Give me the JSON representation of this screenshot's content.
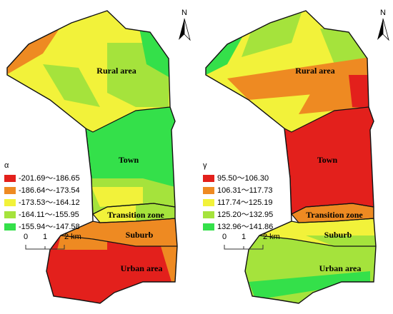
{
  "maps": [
    {
      "legend_title": "α",
      "legend": [
        {
          "label": "-201.69～-186.65",
          "color": "#e3201c"
        },
        {
          "label": "-186.64～-173.54",
          "color": "#ee8a22"
        },
        {
          "label": "-173.53～-164.12",
          "color": "#f2f23a"
        },
        {
          "label": "-164.11～-155.95",
          "color": "#a5e33c"
        },
        {
          "label": "-155.94～-147.58",
          "color": "#34e04a"
        }
      ],
      "zones": [
        "Rural area",
        "Town",
        "Transition zone",
        "Suburb",
        "Urban area"
      ],
      "scale_labels": [
        "0",
        "1",
        "2 km"
      ],
      "north": "N"
    },
    {
      "legend_title": "γ",
      "legend": [
        {
          "label": "95.50～106.30",
          "color": "#e3201c"
        },
        {
          "label": "106.31～117.73",
          "color": "#ee8a22"
        },
        {
          "label": "117.74～125.19",
          "color": "#f2f23a"
        },
        {
          "label": "125.20～132.95",
          "color": "#a5e33c"
        },
        {
          "label": "132.96～141.86",
          "color": "#34e04a"
        }
      ],
      "zones": [
        "Rural area",
        "Town",
        "Transition zone",
        "Suburb",
        "Urban area"
      ],
      "scale_labels": [
        "0",
        "1",
        "2 km"
      ],
      "north": "N"
    }
  ]
}
